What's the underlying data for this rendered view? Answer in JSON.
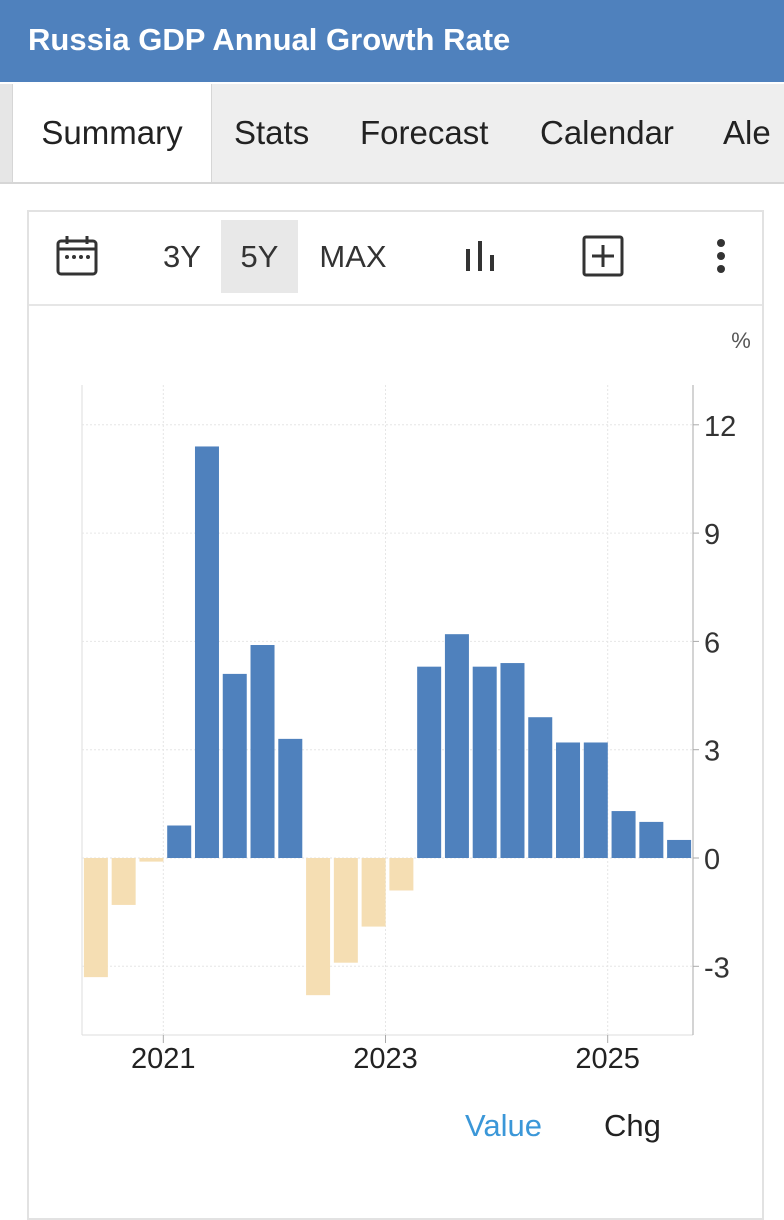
{
  "header": {
    "title": "Russia GDP Annual Growth Rate"
  },
  "tabs": [
    {
      "label": "Summary",
      "active": true
    },
    {
      "label": "Stats",
      "active": false
    },
    {
      "label": "Forecast",
      "active": false
    },
    {
      "label": "Calendar",
      "active": false
    },
    {
      "label": "Ale",
      "active": false
    }
  ],
  "toolbar": {
    "calendar_icon": "calendar-icon",
    "range_3y": "3Y",
    "range_5y": "5Y",
    "range_max": "MAX",
    "selected_range": "5Y",
    "bar_chart_icon": "bar-chart-icon",
    "add_icon": "plus-box-icon",
    "more_icon": "more-vertical-icon"
  },
  "colors": {
    "header_bg": "#4f81bd",
    "positive_bar": "#4f81bd",
    "negative_bar": "#f5deb3",
    "legend_active": "#3b97d8"
  },
  "chart_data": {
    "type": "bar",
    "unit_label": "%",
    "x": [
      "2020-Q2",
      "2020-Q3",
      "2020-Q4",
      "2021-Q1",
      "2021-Q2",
      "2021-Q3",
      "2021-Q4",
      "2022-Q1",
      "2022-Q2",
      "2022-Q3",
      "2022-Q4",
      "2023-Q1",
      "2023-Q2",
      "2023-Q3",
      "2023-Q4",
      "2024-Q1",
      "2024-Q2",
      "2024-Q3",
      "2024-Q4",
      "2025-Q1",
      "2025-Q2",
      "2025-Q3"
    ],
    "values": [
      -3.3,
      -1.3,
      -0.1,
      0.9,
      11.4,
      5.1,
      5.9,
      3.3,
      -3.8,
      -2.9,
      -1.9,
      -0.9,
      5.3,
      6.2,
      5.3,
      5.4,
      3.9,
      3.2,
      3.2,
      1.3,
      1.0,
      0.5
    ],
    "yticks": [
      12,
      9,
      6,
      3,
      0,
      -3
    ],
    "xticks": [
      "2021",
      "2023",
      "2025"
    ],
    "ylim": [
      -4.8,
      13.3
    ],
    "y_axis_side": "right",
    "grid": true,
    "legend": [
      "Value",
      "Chg"
    ],
    "active_legend": "Value"
  }
}
